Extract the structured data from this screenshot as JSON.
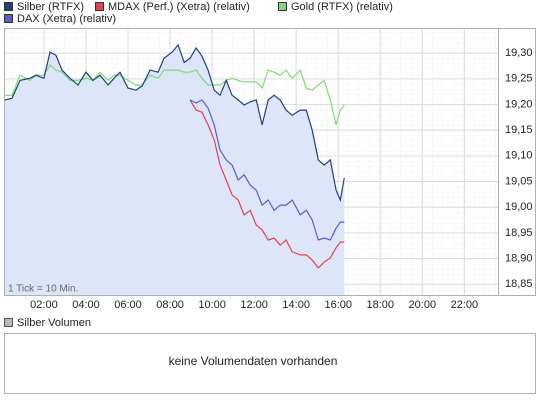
{
  "chart_data": {
    "type": "line",
    "x": [
      0.14,
      0.48,
      0.86,
      1.33,
      1.62,
      2.0,
      2.29,
      2.57,
      2.86,
      3.24,
      3.62,
      4.0,
      4.33,
      4.67,
      5.05,
      5.33,
      5.62,
      6.0,
      6.38,
      6.67,
      7.05,
      7.43,
      7.71,
      8.1,
      8.38,
      8.67,
      8.95,
      9.24,
      9.52,
      9.81,
      10.1,
      10.38,
      10.67,
      10.95,
      11.24,
      11.52,
      11.81,
      12.1,
      12.38,
      12.67,
      12.95,
      13.24,
      13.52,
      13.81,
      14.19,
      14.48,
      14.76,
      15.05,
      15.33,
      15.62,
      15.9,
      16.1,
      16.29
    ],
    "series": [
      {
        "name": "Silber (RTFX)",
        "color": "#1f3f88",
        "fill_color": "#dce6f8",
        "values": [
          19.209,
          19.212,
          19.247,
          19.251,
          19.257,
          19.251,
          19.302,
          19.296,
          19.267,
          19.251,
          19.238,
          19.263,
          19.247,
          19.257,
          19.238,
          19.251,
          19.263,
          19.232,
          19.228,
          19.236,
          19.267,
          19.263,
          19.29,
          19.302,
          19.316,
          19.282,
          19.29,
          19.31,
          19.294,
          19.267,
          19.228,
          19.218,
          19.247,
          19.218,
          19.209,
          19.199,
          19.205,
          19.209,
          19.16,
          19.209,
          19.218,
          19.209,
          19.189,
          19.179,
          19.189,
          19.189,
          19.15,
          19.092,
          19.082,
          19.092,
          19.033,
          19.014,
          19.057
        ]
      },
      {
        "name": "MDAX (Perf.) (Xetra) (relativ)",
        "color": "#e8404a",
        "values": [
          null,
          null,
          null,
          null,
          null,
          null,
          null,
          null,
          null,
          null,
          null,
          null,
          null,
          null,
          null,
          null,
          null,
          null,
          null,
          null,
          null,
          null,
          null,
          null,
          null,
          null,
          19.209,
          19.189,
          19.185,
          19.16,
          19.131,
          19.082,
          19.053,
          19.024,
          19.014,
          18.985,
          18.994,
          18.965,
          18.956,
          18.936,
          18.94,
          18.926,
          18.936,
          18.913,
          18.907,
          18.907,
          18.897,
          18.882,
          18.893,
          18.901,
          18.921,
          18.932,
          18.932
        ]
      },
      {
        "name": "Gold (RTFX) (relativ)",
        "color": "#7ddc6f",
        "values": [
          19.218,
          19.218,
          19.257,
          19.247,
          19.257,
          19.257,
          19.277,
          19.267,
          19.263,
          19.247,
          19.247,
          19.251,
          19.247,
          19.263,
          19.247,
          19.257,
          19.257,
          19.247,
          19.238,
          19.238,
          19.257,
          19.251,
          19.267,
          19.267,
          19.267,
          19.263,
          19.263,
          19.267,
          19.251,
          19.238,
          19.238,
          19.238,
          19.247,
          19.251,
          19.247,
          19.244,
          19.244,
          19.244,
          19.232,
          19.267,
          19.263,
          19.257,
          19.267,
          19.251,
          19.267,
          19.232,
          19.228,
          19.238,
          19.247,
          19.209,
          19.16,
          19.189,
          19.199
        ]
      },
      {
        "name": "DAX (Xetra) (relativ)",
        "color": "#5a5ad8",
        "values": [
          null,
          null,
          null,
          null,
          null,
          null,
          null,
          null,
          null,
          null,
          null,
          null,
          null,
          null,
          null,
          null,
          null,
          null,
          null,
          null,
          null,
          null,
          null,
          null,
          null,
          null,
          19.209,
          19.203,
          19.209,
          19.193,
          19.16,
          19.111,
          19.092,
          19.082,
          19.053,
          19.063,
          19.043,
          19.033,
          19.004,
          19.014,
          18.994,
          19.004,
          19.004,
          19.014,
          18.985,
          18.994,
          18.975,
          18.936,
          18.94,
          18.936,
          18.959,
          18.971,
          18.971
        ]
      }
    ],
    "xlim": [
      0.1,
      23.6
    ],
    "xticks": [
      {
        "value": 2,
        "label": "02:00"
      },
      {
        "value": 4,
        "label": "04:00"
      },
      {
        "value": 6,
        "label": "06:00"
      },
      {
        "value": 8,
        "label": "08:00"
      },
      {
        "value": 10,
        "label": "10:00"
      },
      {
        "value": 12,
        "label": "12:00"
      },
      {
        "value": 14,
        "label": "14:00"
      },
      {
        "value": 16,
        "label": "16:00"
      },
      {
        "value": 18,
        "label": "18:00"
      },
      {
        "value": 20,
        "label": "20:00"
      },
      {
        "value": 22,
        "label": "22:00"
      }
    ],
    "ylim": [
      18.827,
      19.349
    ],
    "yticks": [
      {
        "value": 18.85,
        "label": "18,85"
      },
      {
        "value": 18.9,
        "label": "18,90"
      },
      {
        "value": 18.95,
        "label": "18,95"
      },
      {
        "value": 19.0,
        "label": "19,00"
      },
      {
        "value": 19.05,
        "label": "19,05"
      },
      {
        "value": 19.1,
        "label": "19,10"
      },
      {
        "value": 19.15,
        "label": "19,15"
      },
      {
        "value": 19.2,
        "label": "19,20"
      },
      {
        "value": 19.25,
        "label": "19,25"
      },
      {
        "value": 19.3,
        "label": "19,30"
      }
    ],
    "grid": true,
    "tick_note": "1 Tick = 10 Min."
  },
  "volume_panel": {
    "legend": "Silber Volumen",
    "legend_color": "#b8b8b8",
    "message": "keine Volumendaten vorhanden"
  }
}
